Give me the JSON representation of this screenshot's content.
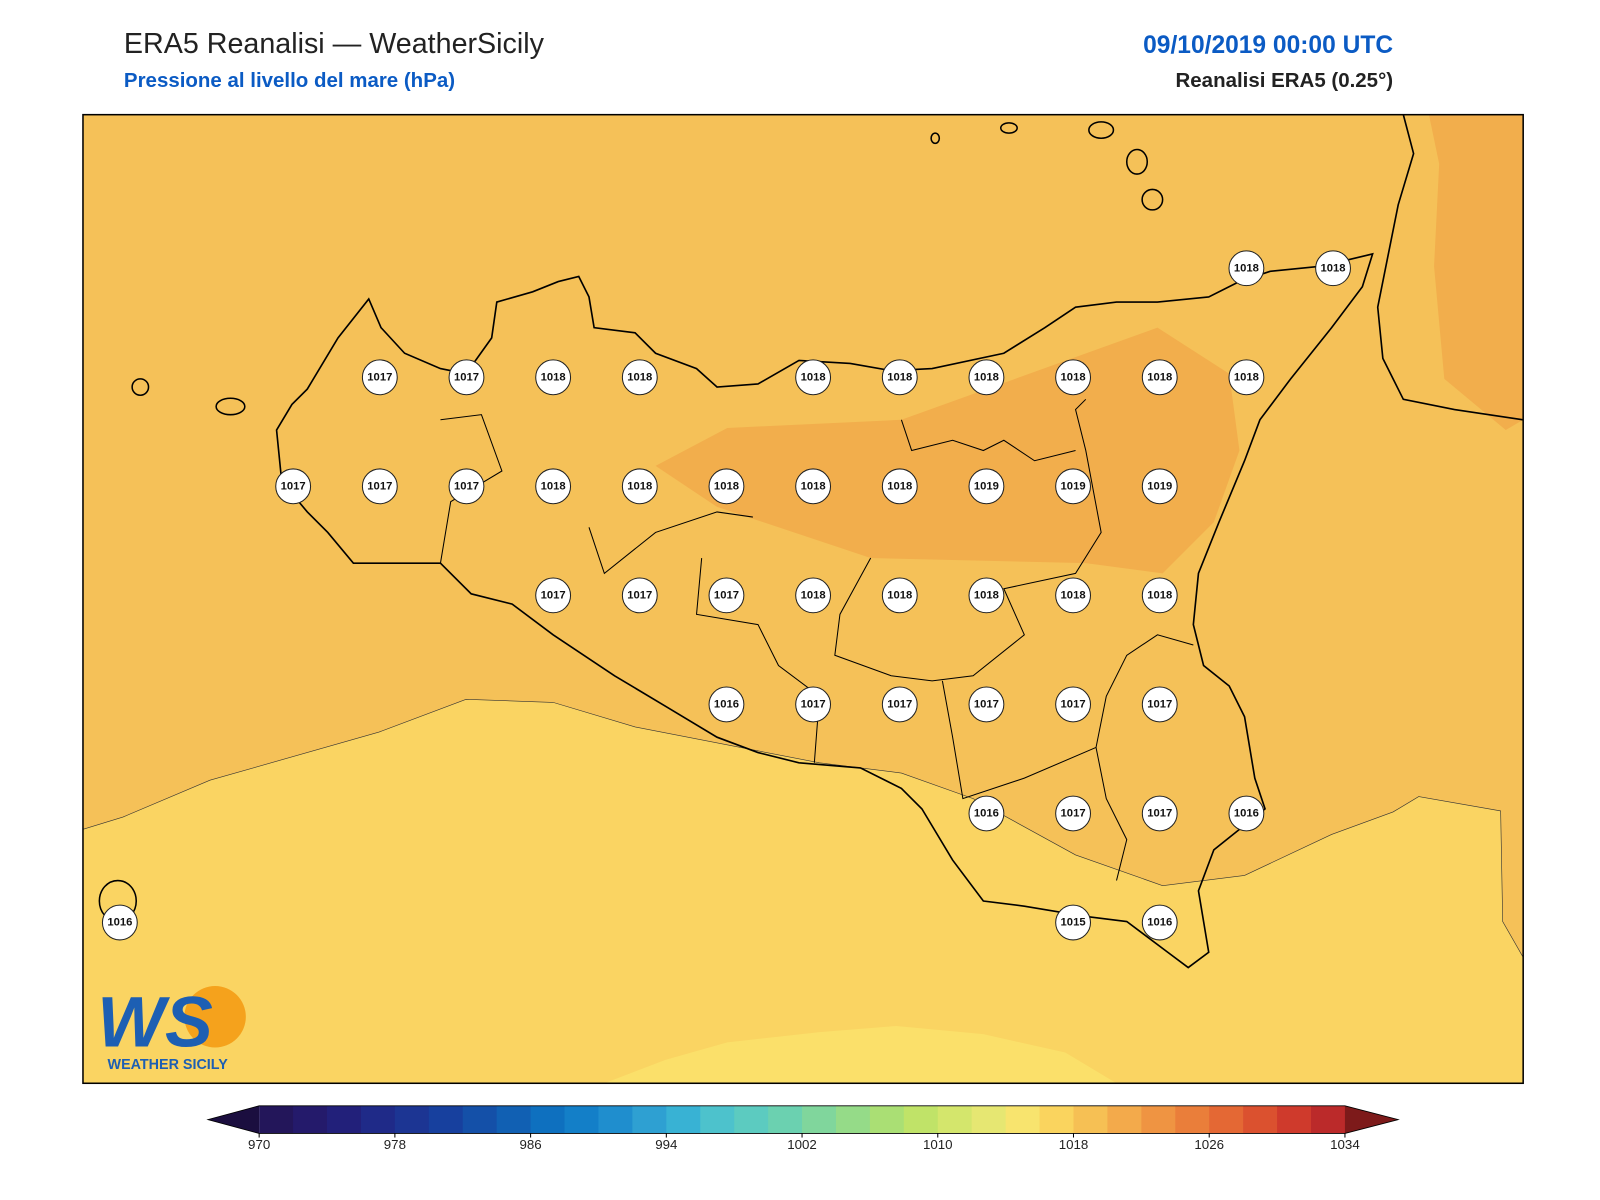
{
  "header": {
    "title": "ERA5 Reanalisi — WeatherSicily",
    "subtitle": "Pressione al livello del mare (hPa)",
    "datetime": "09/10/2019 00:00 UTC",
    "source": "Reanalisi ERA5 (0.25°)"
  },
  "stations": [
    [
      null,
      null,
      null,
      null,
      null,
      null,
      null,
      null,
      null,
      null,
      null,
      null,
      null,
      1018,
      1018
    ],
    [
      null,
      null,
      null,
      1017,
      1017,
      1018,
      1018,
      null,
      1018,
      1018,
      1018,
      1018,
      1018,
      1018,
      null
    ],
    [
      null,
      null,
      1017,
      1017,
      1017,
      1018,
      1018,
      1018,
      1018,
      1018,
      1019,
      1019,
      1019,
      null,
      null
    ],
    [
      null,
      null,
      null,
      null,
      null,
      1017,
      1017,
      1017,
      1018,
      1018,
      1018,
      1018,
      1018,
      null,
      null
    ],
    [
      null,
      null,
      null,
      null,
      null,
      null,
      null,
      1016,
      1017,
      1017,
      1017,
      1017,
      1017,
      null,
      null
    ],
    [
      null,
      null,
      null,
      null,
      null,
      null,
      null,
      null,
      null,
      null,
      1016,
      1017,
      1017,
      1016,
      null
    ],
    [
      1016,
      null,
      null,
      null,
      null,
      null,
      null,
      null,
      null,
      null,
      null,
      1015,
      1016,
      null,
      null
    ]
  ],
  "colorbar": {
    "range": [
      970,
      1034
    ],
    "ticks": [
      970,
      978,
      986,
      994,
      1002,
      1010,
      1018,
      1026,
      1034
    ],
    "colors": [
      "#23165a",
      "#241a6b",
      "#22207a",
      "#1f2a88",
      "#1c3593",
      "#17409e",
      "#1450a8",
      "#1160b3",
      "#0e70bf",
      "#137fc8",
      "#1f8ece",
      "#2ea0d2",
      "#38b2d4",
      "#4dc2cc",
      "#5ccbc0",
      "#6bd1b0",
      "#80d69c",
      "#95db88",
      "#aadf74",
      "#c0e368",
      "#d4e66c",
      "#e6e772",
      "#f8e46e",
      "#fad45e",
      "#f6c054",
      "#f3aa4b",
      "#ef9442",
      "#ea7e3a",
      "#e46834",
      "#db512f",
      "#cf3a2c",
      "#bb2a2a"
    ],
    "under_color": "#1b0e3f",
    "over_color": "#7d1a1a"
  },
  "logo": {
    "mark": "WS",
    "text": "WEATHER SICILY"
  }
}
